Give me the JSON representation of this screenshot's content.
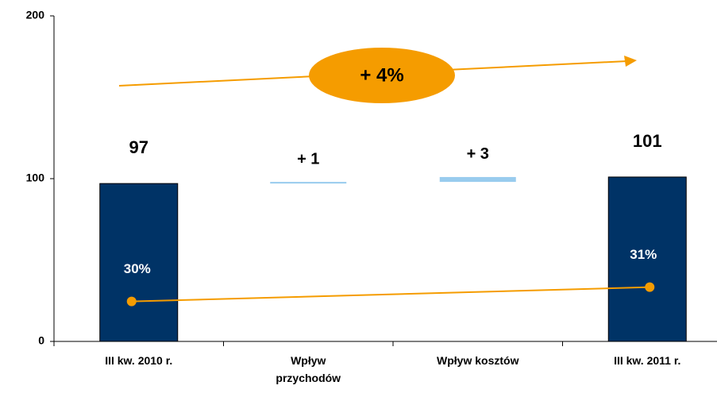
{
  "chart_data": {
    "type": "waterfall",
    "categories": [
      "III kw. 2010 r.",
      "Wpływ przychodów",
      "Wpływ kosztów",
      "III kw. 2011 r."
    ],
    "values": [
      97,
      1,
      3,
      101
    ],
    "value_labels": [
      "97",
      "+ 1",
      "+ 3",
      "101"
    ],
    "totals": [
      true,
      false,
      false,
      true
    ],
    "colors": {
      "total": "#003366",
      "increase": "#99ccee"
    },
    "ylim": [
      0,
      200
    ],
    "yticks": [
      0,
      100,
      200
    ],
    "series": [
      {
        "color": "#f59c00",
        "axis": "y2",
        "values": [
          30,
          null,
          null,
          31
        ],
        "value_labels": [
          "30%",
          null,
          null,
          "31%"
        ]
      }
    ],
    "y2lim": [
      27.2,
      50
    ],
    "annotation": "+ 4%"
  }
}
